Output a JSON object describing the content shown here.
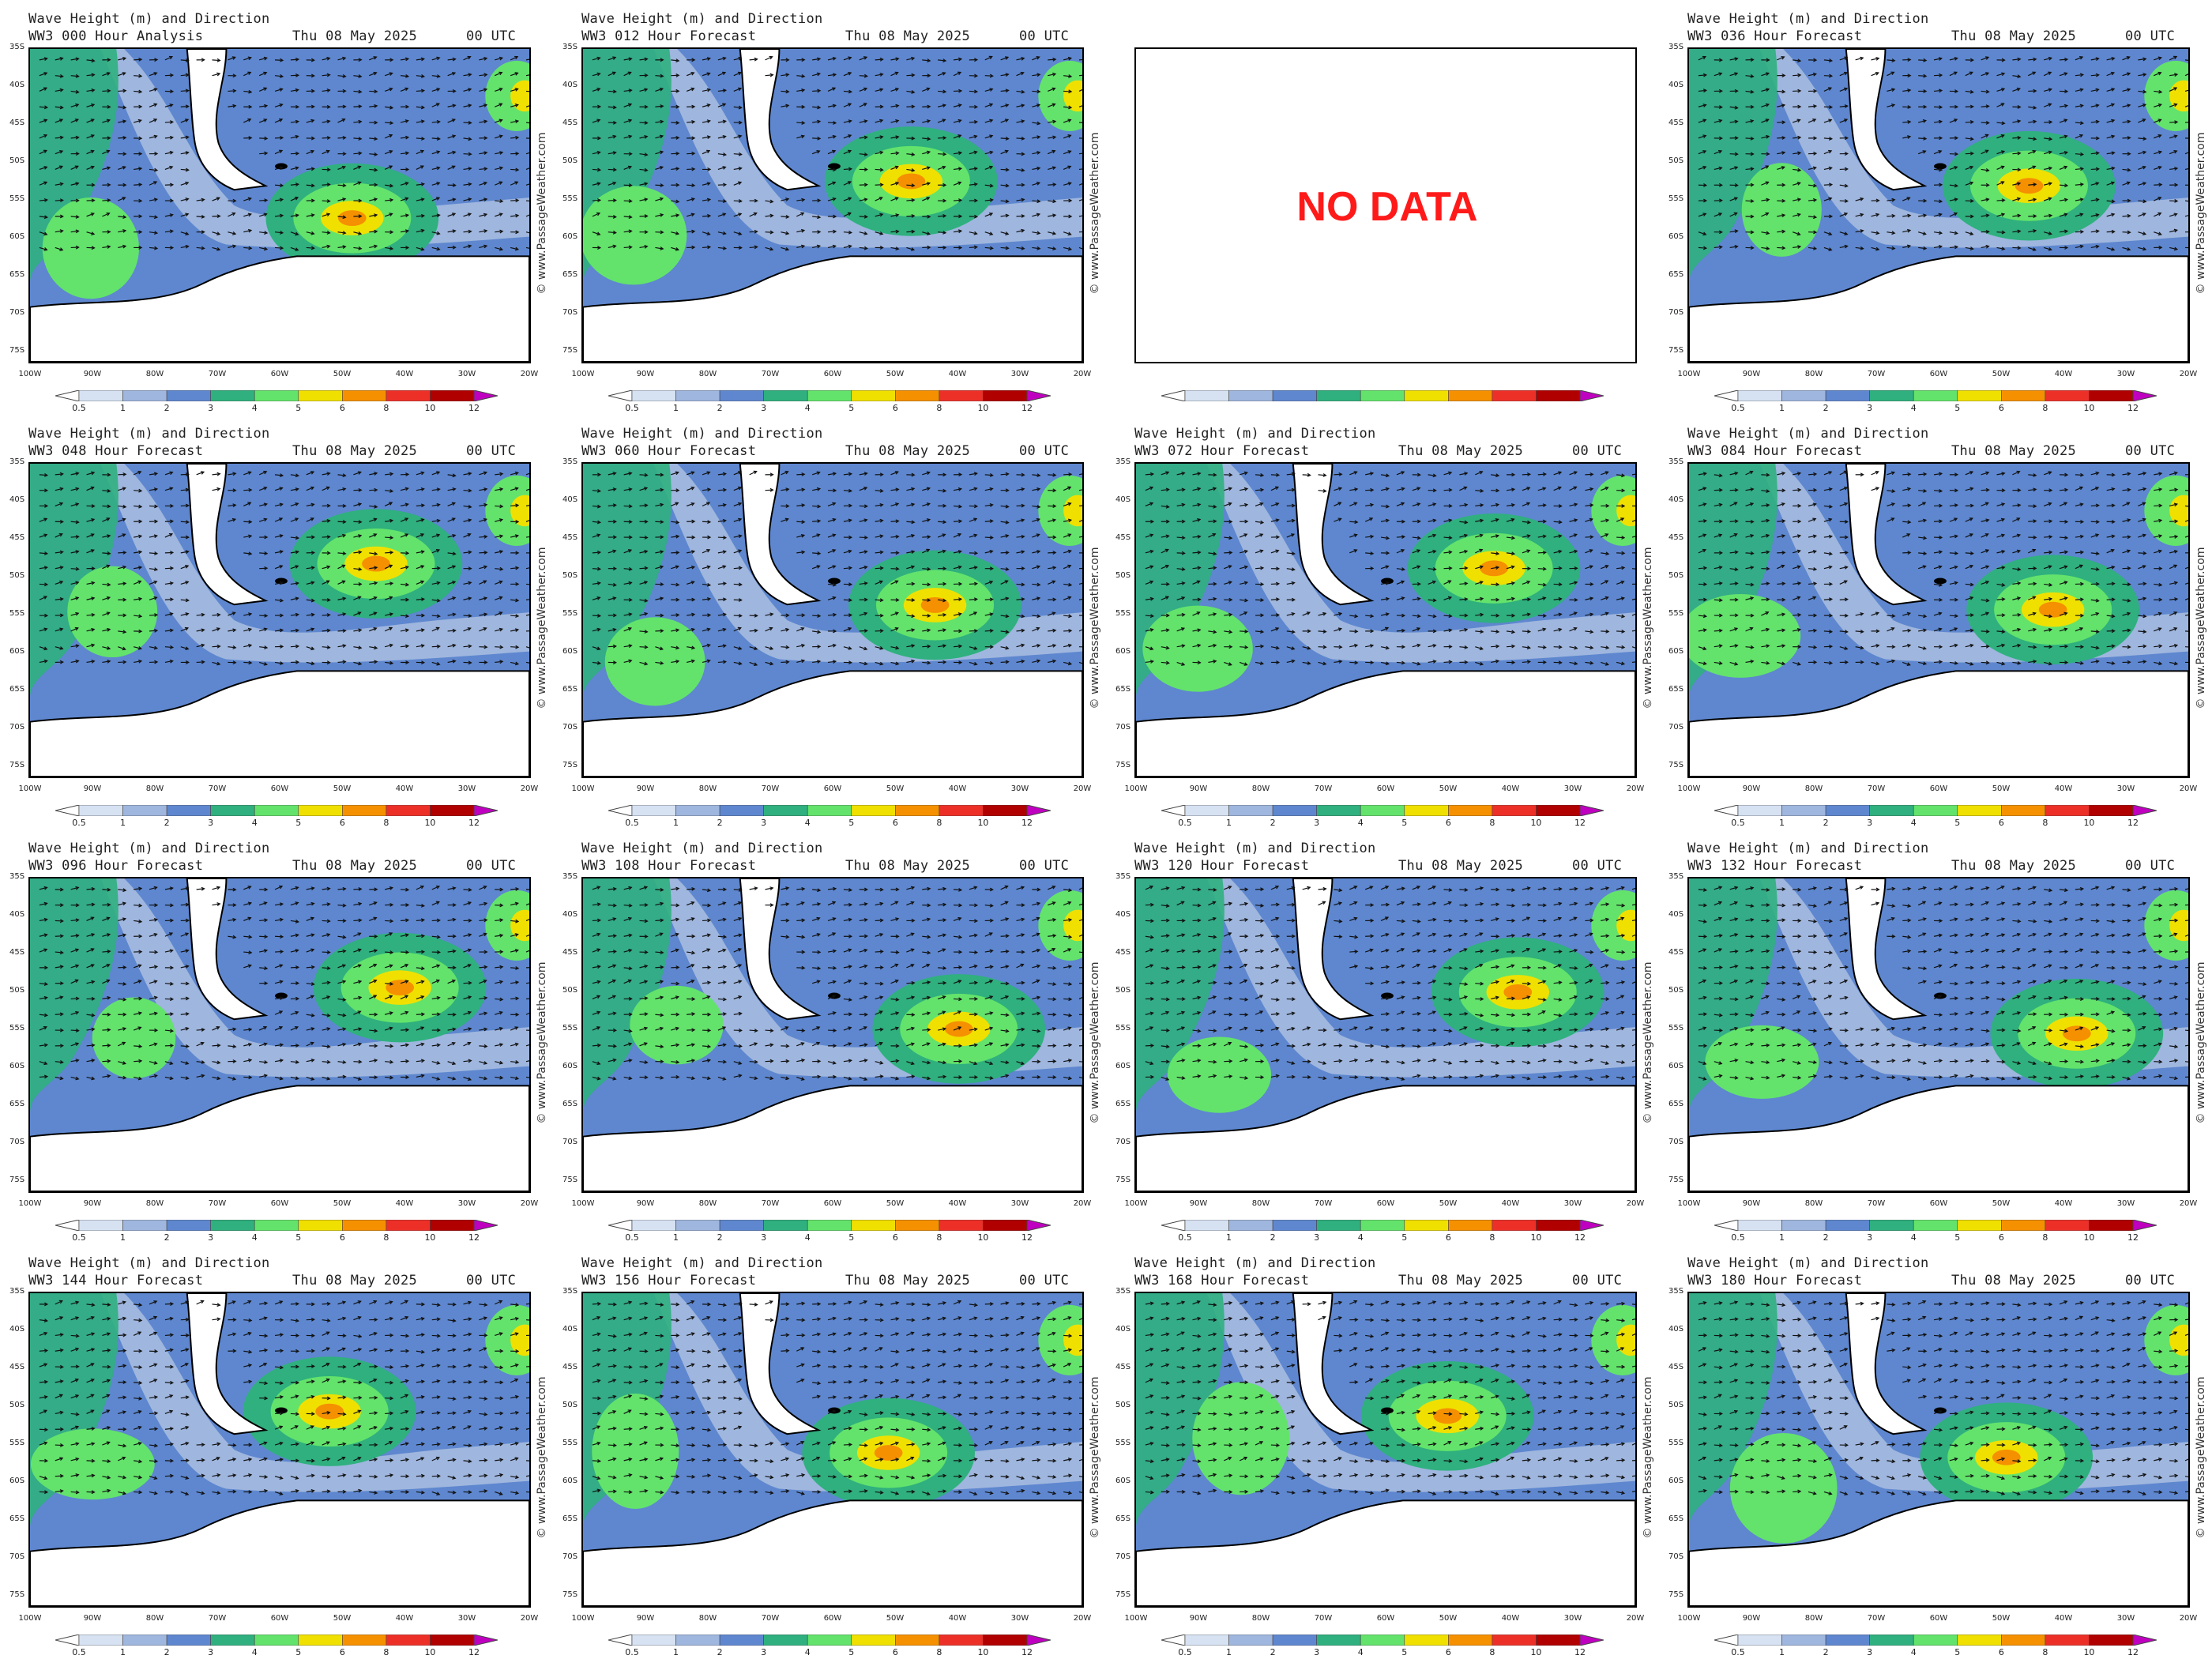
{
  "panel_title": "Wave Height (m) and Direction",
  "credit": "© www.PassageWeather.com",
  "no_data_text": "NO DATA",
  "lat_labels": [
    "35S",
    "40S",
    "45S",
    "50S",
    "55S",
    "60S",
    "65S",
    "70S",
    "75S"
  ],
  "lon_labels": [
    "100W",
    "90W",
    "80W",
    "70W",
    "60W",
    "50W",
    "40W",
    "30W",
    "20W"
  ],
  "colorbar": {
    "ticks": [
      "0.5",
      "1",
      "2",
      "3",
      "4",
      "5",
      "6",
      "8",
      "10",
      "12"
    ],
    "colors": [
      "#ffffff",
      "#d6e2f2",
      "#9fb6de",
      "#5e87cf",
      "#2fb07e",
      "#63e36b",
      "#f0e000",
      "#f59000",
      "#ec3028",
      "#b00000",
      "#c000c0"
    ]
  },
  "panels": [
    {
      "run": "WW3 000 Hour Analysis",
      "date": "Thu 08 May 2025",
      "utc": "00 UTC",
      "has_data": true
    },
    {
      "run": "WW3 012 Hour Forecast",
      "date": "Thu 08 May 2025",
      "utc": "00 UTC",
      "has_data": true
    },
    {
      "run": "",
      "date": "",
      "utc": "",
      "has_data": false
    },
    {
      "run": "WW3 036 Hour Forecast",
      "date": "Thu 08 May 2025",
      "utc": "00 UTC",
      "has_data": true
    },
    {
      "run": "WW3 048 Hour Forecast",
      "date": "Thu 08 May 2025",
      "utc": "00 UTC",
      "has_data": true
    },
    {
      "run": "WW3 060 Hour Forecast",
      "date": "Thu 08 May 2025",
      "utc": "00 UTC",
      "has_data": true
    },
    {
      "run": "WW3 072 Hour Forecast",
      "date": "Thu 08 May 2025",
      "utc": "00 UTC",
      "has_data": true
    },
    {
      "run": "WW3 084 Hour Forecast",
      "date": "Thu 08 May 2025",
      "utc": "00 UTC",
      "has_data": true
    },
    {
      "run": "WW3 096 Hour Forecast",
      "date": "Thu 08 May 2025",
      "utc": "00 UTC",
      "has_data": true
    },
    {
      "run": "WW3 108 Hour Forecast",
      "date": "Thu 08 May 2025",
      "utc": "00 UTC",
      "has_data": true
    },
    {
      "run": "WW3 120 Hour Forecast",
      "date": "Thu 08 May 2025",
      "utc": "00 UTC",
      "has_data": true
    },
    {
      "run": "WW3 132 Hour Forecast",
      "date": "Thu 08 May 2025",
      "utc": "00 UTC",
      "has_data": true
    },
    {
      "run": "WW3 144 Hour Forecast",
      "date": "Thu 08 May 2025",
      "utc": "00 UTC",
      "has_data": true
    },
    {
      "run": "WW3 156 Hour Forecast",
      "date": "Thu 08 May 2025",
      "utc": "00 UTC",
      "has_data": true
    },
    {
      "run": "WW3 168 Hour Forecast",
      "date": "Thu 08 May 2025",
      "utc": "00 UTC",
      "has_data": true
    },
    {
      "run": "WW3 180 Hour Forecast",
      "date": "Thu 08 May 2025",
      "utc": "00 UTC",
      "has_data": true
    }
  ]
}
